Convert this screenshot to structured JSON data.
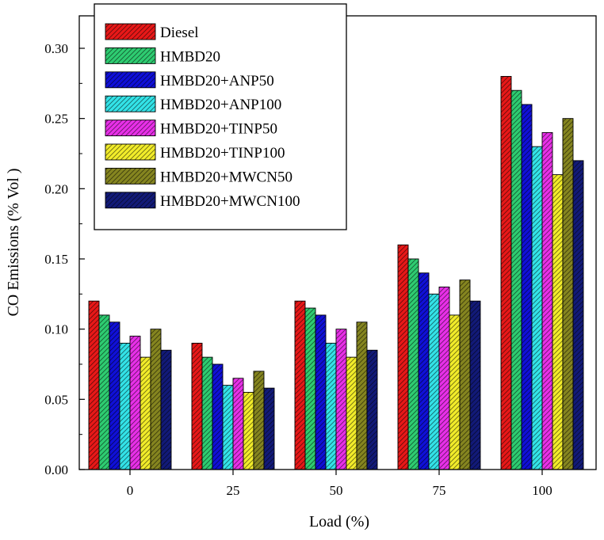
{
  "chart_data": {
    "type": "bar",
    "title": "",
    "xlabel": "Load (%)",
    "ylabel": "CO Emissions (% Vol )",
    "categories": [
      "0",
      "25",
      "50",
      "75",
      "100"
    ],
    "ylim": [
      0,
      0.3
    ],
    "yticks": [
      "0.00",
      "0.05",
      "0.10",
      "0.15",
      "0.20",
      "0.25",
      "0.30"
    ],
    "ytick_values": [
      0,
      0.05,
      0.1,
      0.15,
      0.2,
      0.25,
      0.3
    ],
    "grid": false,
    "legend_position": "top-left",
    "bar_pattern": "diagonal-hatch",
    "series": [
      {
        "name": "Diesel",
        "color": "#e81818",
        "values": [
          0.12,
          0.09,
          0.12,
          0.16,
          0.28
        ]
      },
      {
        "name": "HMBD20",
        "color": "#2ecc71",
        "values": [
          0.11,
          0.08,
          0.115,
          0.15,
          0.27
        ]
      },
      {
        "name": "HMBD20+ANP50",
        "color": "#1010d8",
        "values": [
          0.105,
          0.075,
          0.11,
          0.14,
          0.26
        ]
      },
      {
        "name": "HMBD20+ANP100",
        "color": "#33e3e8",
        "values": [
          0.09,
          0.06,
          0.09,
          0.125,
          0.23
        ]
      },
      {
        "name": "HMBD20+TINP50",
        "color": "#e830e8",
        "values": [
          0.095,
          0.065,
          0.1,
          0.13,
          0.24
        ]
      },
      {
        "name": "HMBD20+TINP100",
        "color": "#f2ec2a",
        "values": [
          0.08,
          0.055,
          0.08,
          0.11,
          0.21
        ]
      },
      {
        "name": "HMBD20+MWCN50",
        "color": "#858520",
        "values": [
          0.1,
          0.07,
          0.105,
          0.135,
          0.25
        ]
      },
      {
        "name": "HMBD20+MWCN100",
        "color": "#121a78",
        "values": [
          0.085,
          0.058,
          0.085,
          0.12,
          0.22
        ]
      }
    ]
  }
}
